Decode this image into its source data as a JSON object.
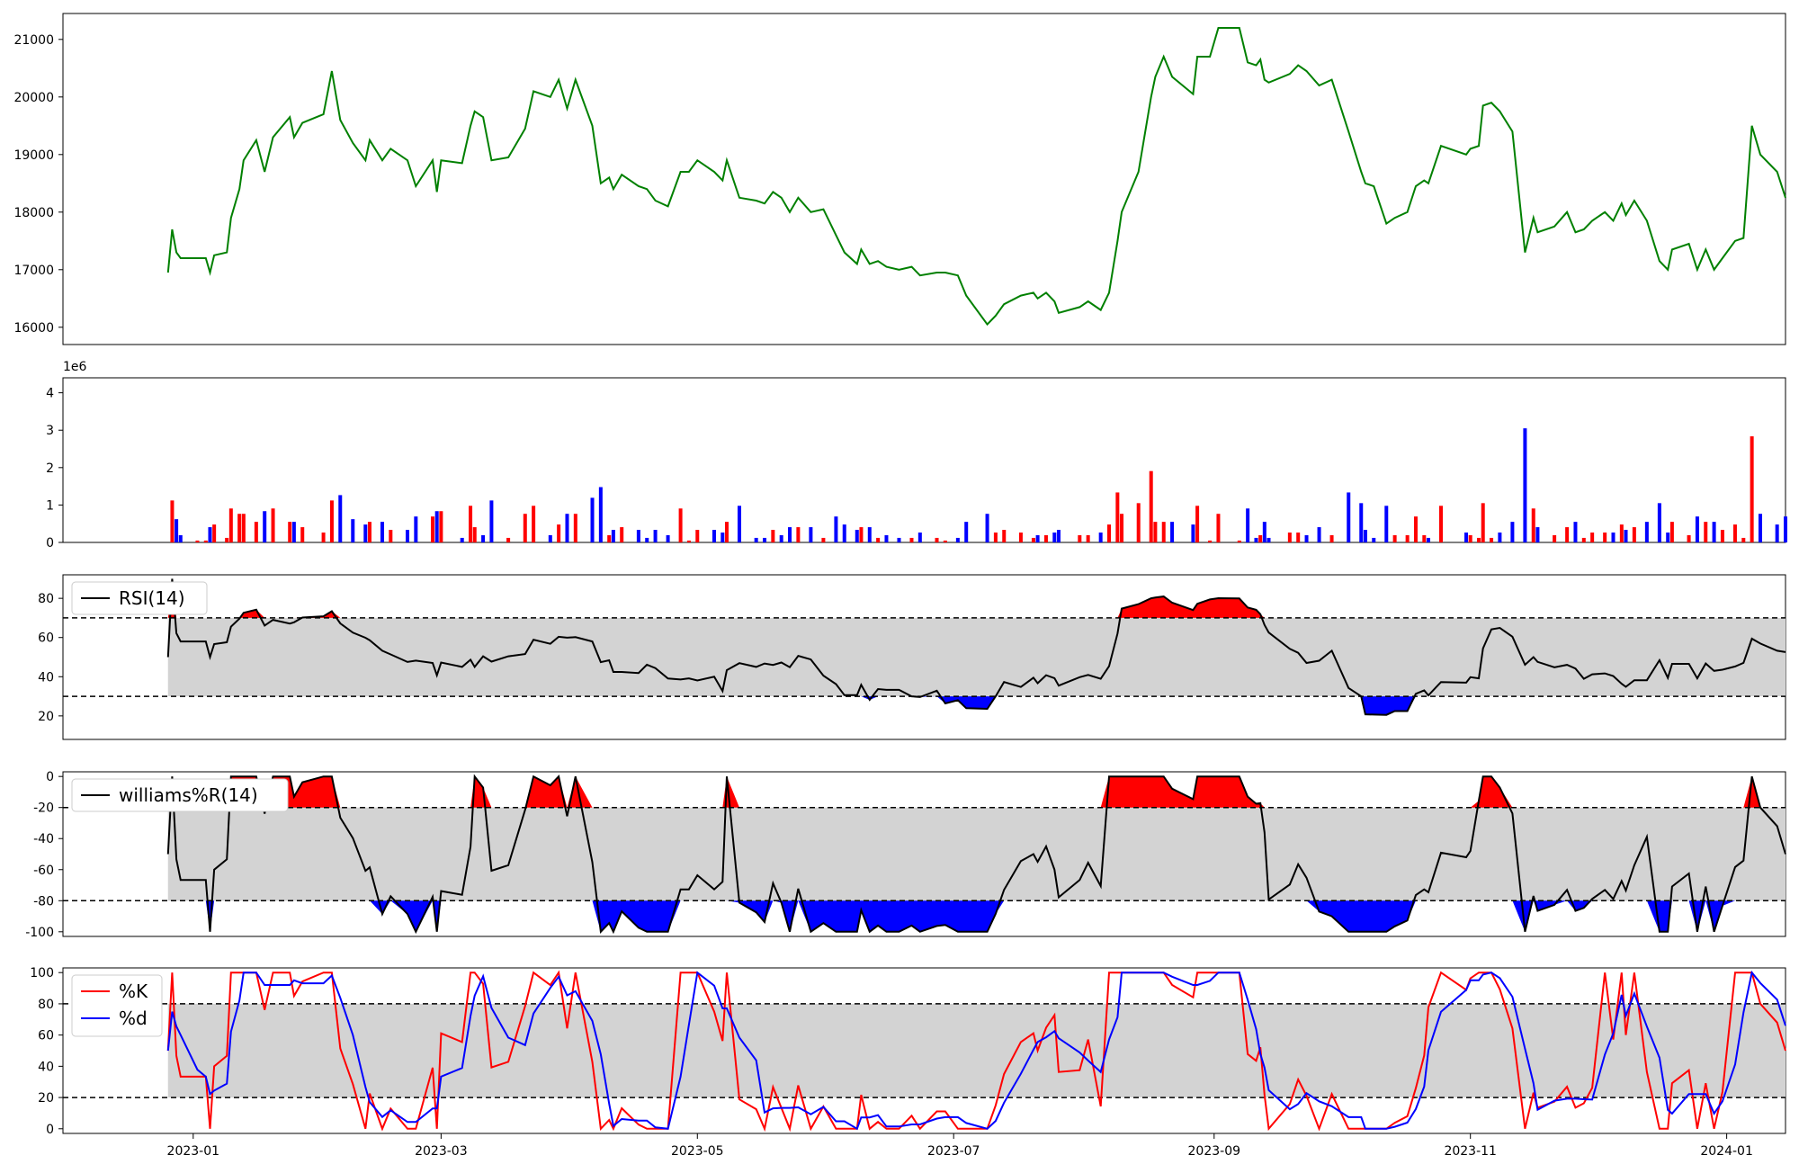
{
  "chart_data": {
    "type": "line",
    "x_axis": {
      "range": [
        "2022-12-01",
        "2024-01-15"
      ],
      "tick_labels": [
        "2023-01",
        "2023-03",
        "2023-05",
        "2023-07",
        "2023-09",
        "2023-11",
        "2024-01"
      ],
      "tick_dates": [
        "2023-01-01",
        "2023-03-01",
        "2023-05-01",
        "2023-07-01",
        "2023-09-01",
        "2023-11-01",
        "2024-01-01"
      ]
    },
    "panels": [
      {
        "id": "price",
        "type": "line",
        "ylim": [
          15700,
          21450
        ],
        "yticks": [
          16000,
          17000,
          18000,
          19000,
          20000,
          21000
        ],
        "ytick_labels": [
          "16000",
          "17000",
          "18000",
          "19000",
          "20000",
          "21000"
        ],
        "series": [
          {
            "color": "#008000",
            "points": [
              [
                "2022-12-26",
                16950
              ],
              [
                "2022-12-27",
                17700
              ],
              [
                "2022-12-28",
                17300
              ],
              [
                "2022-12-29",
                17200
              ],
              [
                "2023-01-02",
                17200
              ],
              [
                "2023-01-04",
                17200
              ],
              [
                "2023-01-05",
                16950
              ],
              [
                "2023-01-06",
                17250
              ],
              [
                "2023-01-09",
                17300
              ],
              [
                "2023-01-10",
                17900
              ],
              [
                "2023-01-12",
                18400
              ],
              [
                "2023-01-13",
                18900
              ],
              [
                "2023-01-16",
                19250
              ],
              [
                "2023-01-18",
                18700
              ],
              [
                "2023-01-20",
                19300
              ],
              [
                "2023-01-24",
                19650
              ],
              [
                "2023-01-25",
                19300
              ],
              [
                "2023-01-27",
                19550
              ],
              [
                "2023-02-01",
                19700
              ],
              [
                "2023-02-03",
                20450
              ],
              [
                "2023-02-05",
                19600
              ],
              [
                "2023-02-08",
                19200
              ],
              [
                "2023-02-11",
                18900
              ],
              [
                "2023-02-12",
                19250
              ],
              [
                "2023-02-15",
                18900
              ],
              [
                "2023-02-17",
                19100
              ],
              [
                "2023-02-21",
                18900
              ],
              [
                "2023-02-23",
                18450
              ],
              [
                "2023-02-27",
                18900
              ],
              [
                "2023-02-28",
                18350
              ],
              [
                "2023-03-01",
                18900
              ],
              [
                "2023-03-06",
                18850
              ],
              [
                "2023-03-08",
                19500
              ],
              [
                "2023-03-09",
                19750
              ],
              [
                "2023-03-11",
                19650
              ],
              [
                "2023-03-13",
                18900
              ],
              [
                "2023-03-17",
                18950
              ],
              [
                "2023-03-21",
                19450
              ],
              [
                "2023-03-23",
                20100
              ],
              [
                "2023-03-27",
                20000
              ],
              [
                "2023-03-29",
                20300
              ],
              [
                "2023-03-31",
                19800
              ],
              [
                "2023-04-02",
                20300
              ],
              [
                "2023-04-06",
                19500
              ],
              [
                "2023-04-08",
                18500
              ],
              [
                "2023-04-10",
                18600
              ],
              [
                "2023-04-11",
                18400
              ],
              [
                "2023-04-13",
                18650
              ],
              [
                "2023-04-17",
                18450
              ],
              [
                "2023-04-19",
                18400
              ],
              [
                "2023-04-21",
                18200
              ],
              [
                "2023-04-24",
                18100
              ],
              [
                "2023-04-27",
                18700
              ],
              [
                "2023-04-29",
                18700
              ],
              [
                "2023-05-01",
                18900
              ],
              [
                "2023-05-05",
                18700
              ],
              [
                "2023-05-07",
                18550
              ],
              [
                "2023-05-08",
                18900
              ],
              [
                "2023-05-11",
                18250
              ],
              [
                "2023-05-15",
                18200
              ],
              [
                "2023-05-17",
                18150
              ],
              [
                "2023-05-19",
                18350
              ],
              [
                "2023-05-21",
                18250
              ],
              [
                "2023-05-23",
                18000
              ],
              [
                "2023-05-25",
                18250
              ],
              [
                "2023-05-28",
                18000
              ],
              [
                "2023-05-31",
                18050
              ],
              [
                "2023-06-03",
                17600
              ],
              [
                "2023-06-05",
                17300
              ],
              [
                "2023-06-08",
                17100
              ],
              [
                "2023-06-09",
                17350
              ],
              [
                "2023-06-11",
                17100
              ],
              [
                "2023-06-13",
                17150
              ],
              [
                "2023-06-15",
                17050
              ],
              [
                "2023-06-18",
                17000
              ],
              [
                "2023-06-21",
                17050
              ],
              [
                "2023-06-23",
                16900
              ],
              [
                "2023-06-27",
                16950
              ],
              [
                "2023-06-29",
                16950
              ],
              [
                "2023-07-02",
                16900
              ],
              [
                "2023-07-04",
                16550
              ],
              [
                "2023-07-09",
                16050
              ],
              [
                "2023-07-11",
                16200
              ],
              [
                "2023-07-13",
                16400
              ],
              [
                "2023-07-17",
                16550
              ],
              [
                "2023-07-20",
                16600
              ],
              [
                "2023-07-21",
                16500
              ],
              [
                "2023-07-23",
                16600
              ],
              [
                "2023-07-25",
                16450
              ],
              [
                "2023-07-26",
                16250
              ],
              [
                "2023-07-31",
                16350
              ],
              [
                "2023-08-02",
                16450
              ],
              [
                "2023-08-05",
                16300
              ],
              [
                "2023-08-07",
                16600
              ],
              [
                "2023-08-09",
                17500
              ],
              [
                "2023-08-10",
                18000
              ],
              [
                "2023-08-14",
                18700
              ],
              [
                "2023-08-17",
                20000
              ],
              [
                "2023-08-18",
                20350
              ],
              [
                "2023-08-20",
                20700
              ],
              [
                "2023-08-22",
                20350
              ],
              [
                "2023-08-27",
                20050
              ],
              [
                "2023-08-28",
                20700
              ],
              [
                "2023-08-31",
                20700
              ],
              [
                "2023-09-02",
                21200
              ],
              [
                "2023-09-07",
                21200
              ],
              [
                "2023-09-09",
                20600
              ],
              [
                "2023-09-11",
                20550
              ],
              [
                "2023-09-12",
                20650
              ],
              [
                "2023-09-13",
                20300
              ],
              [
                "2023-09-14",
                20250
              ],
              [
                "2023-09-19",
                20400
              ],
              [
                "2023-09-21",
                20550
              ],
              [
                "2023-09-23",
                20450
              ],
              [
                "2023-09-26",
                20200
              ],
              [
                "2023-09-29",
                20300
              ],
              [
                "2023-10-03",
                19400
              ],
              [
                "2023-10-06",
                18700
              ],
              [
                "2023-10-07",
                18500
              ],
              [
                "2023-10-09",
                18450
              ],
              [
                "2023-10-12",
                17800
              ],
              [
                "2023-10-14",
                17900
              ],
              [
                "2023-10-17",
                18000
              ],
              [
                "2023-10-19",
                18450
              ],
              [
                "2023-10-21",
                18550
              ],
              [
                "2023-10-22",
                18500
              ],
              [
                "2023-10-25",
                19150
              ],
              [
                "2023-10-31",
                19000
              ],
              [
                "2023-11-01",
                19100
              ],
              [
                "2023-11-03",
                19150
              ],
              [
                "2023-11-04",
                19850
              ],
              [
                "2023-11-06",
                19900
              ],
              [
                "2023-11-08",
                19750
              ],
              [
                "2023-11-11",
                19400
              ],
              [
                "2023-11-14",
                17300
              ],
              [
                "2023-11-16",
                17900
              ],
              [
                "2023-11-17",
                17650
              ],
              [
                "2023-11-21",
                17750
              ],
              [
                "2023-11-24",
                18000
              ],
              [
                "2023-11-26",
                17650
              ],
              [
                "2023-11-28",
                17700
              ],
              [
                "2023-11-30",
                17850
              ],
              [
                "2023-12-03",
                18000
              ],
              [
                "2023-12-05",
                17850
              ],
              [
                "2023-12-07",
                18150
              ],
              [
                "2023-12-08",
                17950
              ],
              [
                "2023-12-10",
                18200
              ],
              [
                "2023-12-13",
                17850
              ],
              [
                "2023-12-16",
                17150
              ],
              [
                "2023-12-18",
                17000
              ],
              [
                "2023-12-19",
                17350
              ],
              [
                "2023-12-23",
                17450
              ],
              [
                "2023-12-25",
                17000
              ],
              [
                "2023-12-27",
                17350
              ],
              [
                "2023-12-29",
                17000
              ],
              [
                "2023-12-31",
                17200
              ],
              [
                "2024-01-03",
                17500
              ],
              [
                "2024-01-05",
                17550
              ],
              [
                "2024-01-07",
                19500
              ],
              [
                "2024-01-09",
                19000
              ],
              [
                "2024-01-13",
                18700
              ],
              [
                "2024-01-15",
                18250
              ]
            ]
          }
        ]
      }
    ]
  },
  "panels": {
    "volume": {
      "exponent_label": "1e6",
      "yticks": [
        0,
        1,
        2,
        3,
        4
      ]
    },
    "rsi": {
      "legend": "RSI(14)",
      "yticks": [
        20,
        40,
        60,
        80
      ],
      "upper": 70,
      "lower": 30
    },
    "williams": {
      "legend": "williams%R(14)",
      "yticks": [
        0,
        -20,
        -40,
        -60,
        -80,
        -100
      ],
      "upper": -20,
      "lower": -80
    },
    "stoch": {
      "legend_k": "%K",
      "legend_d": "%d",
      "yticks": [
        0,
        20,
        40,
        60,
        80,
        100
      ],
      "upper": 80,
      "lower": 20
    }
  },
  "colors": {
    "price": "#008000",
    "up": "#ff0000",
    "down": "#0000ff",
    "band": "#d3d3d3",
    "k": "#ff0000",
    "d": "#0000ff"
  }
}
